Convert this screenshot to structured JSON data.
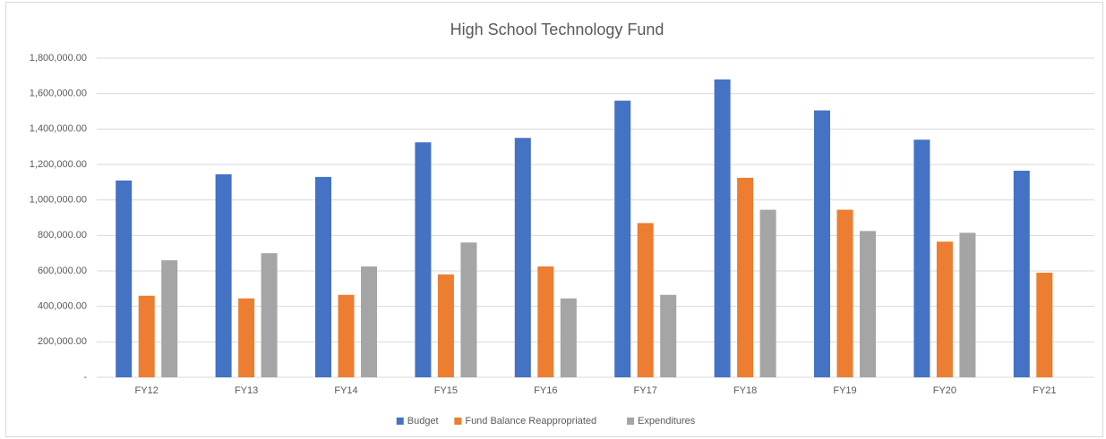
{
  "chart_data": {
    "type": "bar",
    "title": "High School Technology Fund",
    "categories": [
      "FY12",
      "FY13",
      "FY14",
      "FY15",
      "FY16",
      "FY17",
      "FY18",
      "FY19",
      "FY20",
      "FY21"
    ],
    "series": [
      {
        "name": "Budget",
        "color": "#4472c4",
        "values": [
          1110000,
          1145000,
          1130000,
          1325000,
          1350000,
          1560000,
          1680000,
          1505000,
          1340000,
          1165000
        ]
      },
      {
        "name": "Fund Balance Reappropriated",
        "color": "#ed7d31",
        "values": [
          460000,
          445000,
          465000,
          580000,
          625000,
          870000,
          1125000,
          945000,
          765000,
          590000
        ]
      },
      {
        "name": "Expenditures",
        "color": "#a5a5a5",
        "values": [
          660000,
          700000,
          625000,
          760000,
          445000,
          465000,
          945000,
          825000,
          815000,
          null
        ]
      }
    ],
    "ylim": [
      0,
      1800000
    ],
    "yticks": [
      {
        "value": 0,
        "label": "-"
      },
      {
        "value": 200000,
        "label": "200,000.00"
      },
      {
        "value": 400000,
        "label": "400,000.00"
      },
      {
        "value": 600000,
        "label": "600,000.00"
      },
      {
        "value": 800000,
        "label": "800,000.00"
      },
      {
        "value": 1000000,
        "label": "1,000,000.00"
      },
      {
        "value": 1200000,
        "label": "1,200,000.00"
      },
      {
        "value": 1400000,
        "label": "1,400,000.00"
      },
      {
        "value": 1600000,
        "label": "1,600,000.00"
      },
      {
        "value": 1800000,
        "label": "1,800,000.00"
      }
    ],
    "grid": true,
    "legend": "bottom"
  }
}
